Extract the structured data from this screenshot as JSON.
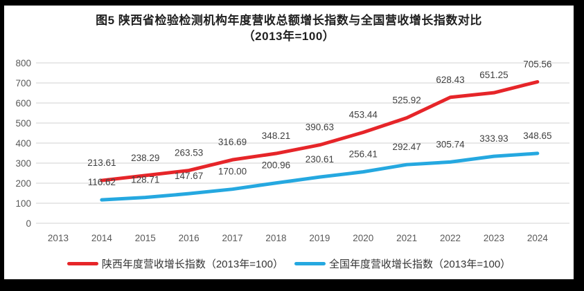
{
  "title": {
    "line1": "图5  陕西省检验检测机构年度营收总额增长指数与全国营收增长指数对比",
    "line2": "（2013年=100）"
  },
  "colors": {
    "shaanxi_line": "#e62529",
    "national_line": "#25a8e0",
    "gridline": "#d9d9d9",
    "axis_text": "#595959",
    "data_label_text": "#404040",
    "frame_border": "#000000"
  },
  "chart_data": {
    "type": "line",
    "title": "图5  陕西省检验检测机构年度营收总额增长指数与全国营收增长指数对比（2013年=100）",
    "categories": [
      "2013",
      "2014",
      "2015",
      "2016",
      "2017",
      "2018",
      "2019",
      "2020",
      "2021",
      "2022",
      "2023",
      "2024"
    ],
    "series": [
      {
        "name": "陕西年度营收增长指数（2013年=100）",
        "color": "#e62529",
        "values": [
          null,
          213.61,
          238.29,
          263.53,
          316.69,
          348.21,
          390.63,
          453.44,
          525.92,
          628.43,
          651.25,
          705.56
        ]
      },
      {
        "name": "全国年度营收增长指数（2013年=100）",
        "color": "#25a8e0",
        "values": [
          null,
          116.62,
          128.71,
          147.67,
          170.0,
          200.96,
          230.61,
          256.41,
          292.47,
          305.74,
          333.93,
          348.65
        ]
      }
    ],
    "ylim": [
      0,
      800
    ],
    "yticks": [
      0,
      100,
      200,
      300,
      400,
      500,
      600,
      700,
      800
    ],
    "grid": true,
    "data_labels": true,
    "data_label_decimals": 2,
    "legend_position": "bottom"
  }
}
